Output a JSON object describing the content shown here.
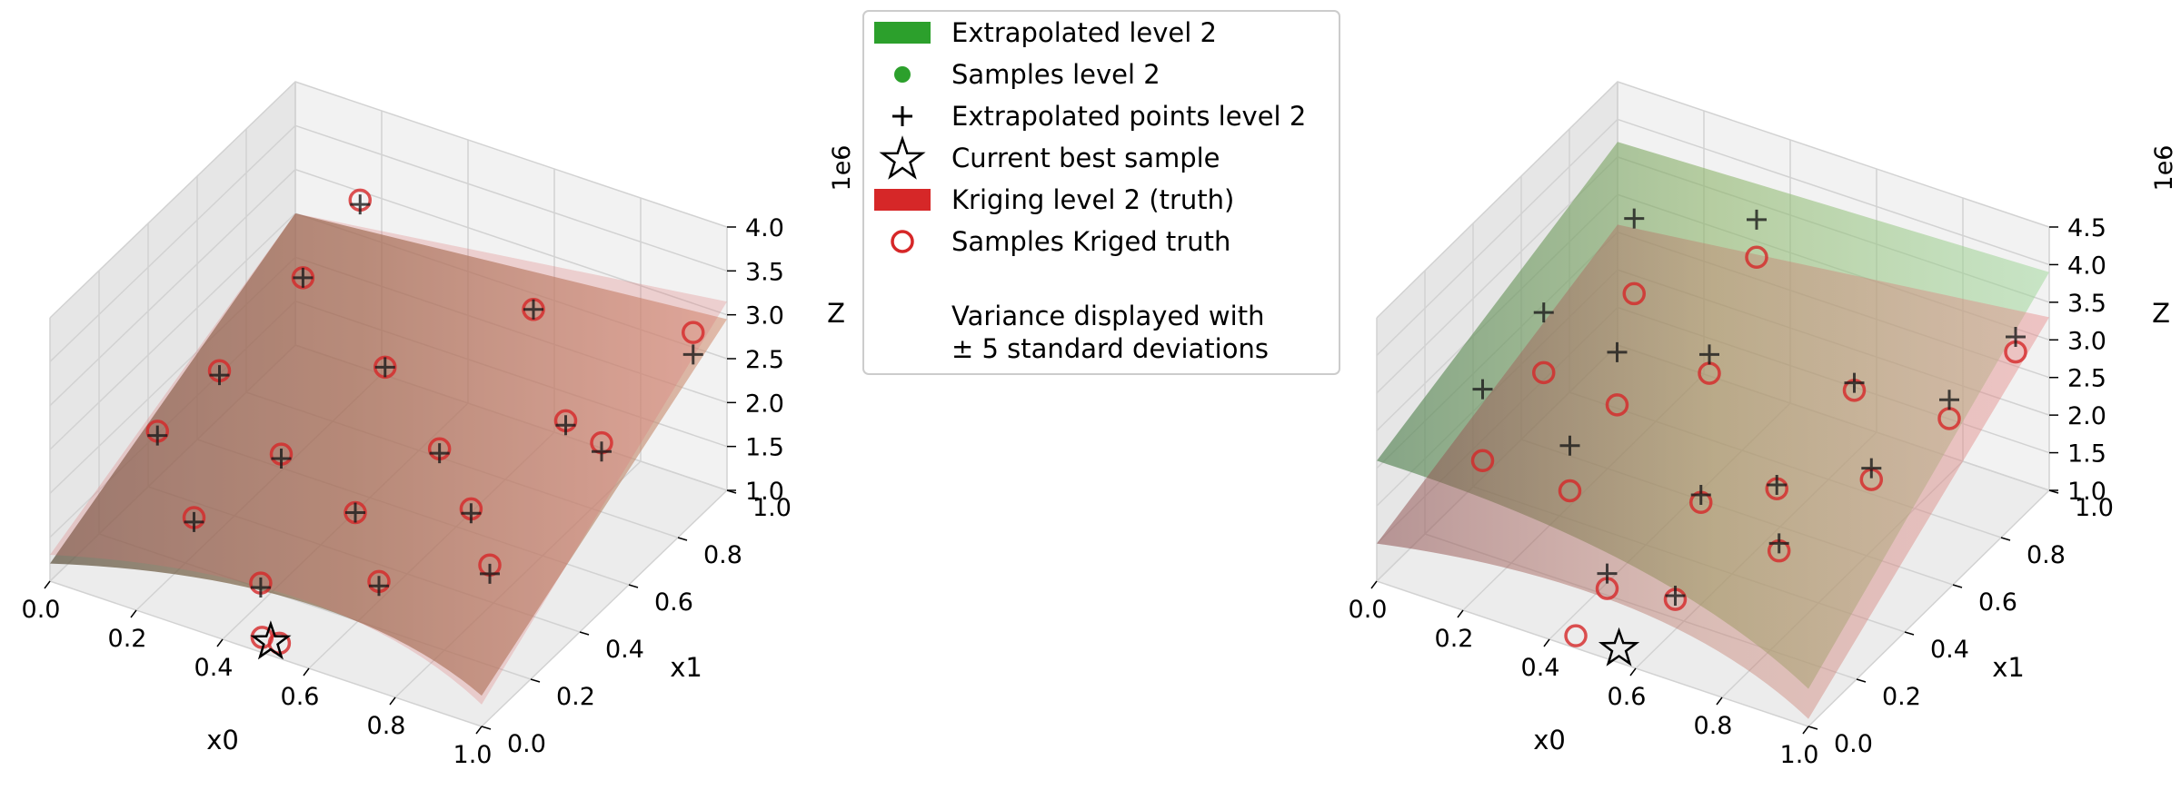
{
  "legend": {
    "items": [
      {
        "label": "Extrapolated level 2",
        "marker": "green-patch",
        "color": "#2ca02c"
      },
      {
        "label": "Samples level 2",
        "marker": "green-dot",
        "color": "#2ca02c"
      },
      {
        "label": "Extrapolated points level 2",
        "marker": "black-plus",
        "color": "#000000"
      },
      {
        "label": "Current best sample",
        "marker": "star-outline",
        "color": "#000000"
      },
      {
        "label": "Kriging level 2 (truth)",
        "marker": "red-patch",
        "color": "#d62728"
      },
      {
        "label": "Samples Kriged truth",
        "marker": "red-ring",
        "color": "#d62728"
      }
    ],
    "note_line1": "Variance displayed with",
    "note_line2": "± 5 standard deviations"
  },
  "chart_data": [
    {
      "type": "surface3d",
      "panel": "left",
      "xlabel": "x0",
      "ylabel": "x1",
      "zlabel": "Z",
      "z_scale_label": "1e6",
      "xlim": [
        0,
        1
      ],
      "ylim": [
        0,
        1
      ],
      "zlim": [
        1.0,
        4.0
      ],
      "x_ticks": [
        "0.0",
        "0.2",
        "0.4",
        "0.6",
        "0.8",
        "1.0"
      ],
      "y_ticks": [
        "0.0",
        "0.2",
        "0.4",
        "0.6",
        "0.8",
        "1.0"
      ],
      "z_ticks": [
        "1.0",
        "1.5",
        "2.0",
        "2.5",
        "3.0",
        "3.5",
        "4.0"
      ],
      "grid": true,
      "series": [
        {
          "name": "Extrapolated level 2",
          "kind": "surface",
          "color": "#2ca02c",
          "z_corners": {
            "x0_0_x1_0": 1.2,
            "x0_1_x1_0": 1.35,
            "x0_0_x1_1": 2.5,
            "x0_1_x1_1": 2.95
          }
        },
        {
          "name": "Kriging level 2 (truth)",
          "kind": "surface",
          "color": "#d62728",
          "z_corners": {
            "x0_0_x1_0": 1.3,
            "x0_1_x1_0": 1.25,
            "x0_0_x1_1": 2.5,
            "x0_1_x1_1": 3.15
          }
        },
        {
          "name": "Samples Kriged truth",
          "kind": "points",
          "color": "#d62728",
          "points": [
            [
              0.05,
              0.35,
              1.85
            ],
            [
              0.08,
              0.55,
              2.05
            ],
            [
              0.12,
              0.82,
              2.45
            ],
            [
              0.15,
              1.0,
              2.9
            ],
            [
              0.22,
              0.2,
              1.55
            ],
            [
              0.28,
              0.45,
              1.7
            ],
            [
              0.35,
              0.75,
              2.0
            ],
            [
              0.42,
              0.12,
              1.35
            ],
            [
              0.48,
              0.4,
              1.5
            ],
            [
              0.55,
              0.62,
              1.75
            ],
            [
              0.58,
              0.95,
              2.5
            ],
            [
              0.62,
              0.25,
              1.35
            ],
            [
              0.68,
              0.52,
              1.55
            ],
            [
              0.74,
              0.8,
              1.9
            ],
            [
              0.82,
              0.35,
              1.6
            ],
            [
              0.88,
              0.7,
              2.15
            ],
            [
              0.95,
              0.95,
              2.85
            ],
            [
              0.48,
              0.02,
              1.1
            ],
            [
              0.52,
              0.02,
              1.1
            ]
          ]
        },
        {
          "name": "Extrapolated points level 2",
          "kind": "points",
          "color": "#000000",
          "points": [
            [
              0.05,
              0.35,
              1.8
            ],
            [
              0.08,
              0.55,
              2.0
            ],
            [
              0.12,
              0.82,
              2.45
            ],
            [
              0.15,
              1.0,
              2.85
            ],
            [
              0.22,
              0.2,
              1.5
            ],
            [
              0.28,
              0.45,
              1.65
            ],
            [
              0.35,
              0.75,
              2.0
            ],
            [
              0.42,
              0.12,
              1.3
            ],
            [
              0.48,
              0.4,
              1.5
            ],
            [
              0.55,
              0.62,
              1.7
            ],
            [
              0.58,
              0.95,
              2.5
            ],
            [
              0.62,
              0.25,
              1.3
            ],
            [
              0.68,
              0.52,
              1.5
            ],
            [
              0.74,
              0.8,
              1.85
            ],
            [
              0.82,
              0.35,
              1.5
            ],
            [
              0.88,
              0.7,
              2.05
            ],
            [
              0.95,
              0.95,
              2.6
            ]
          ]
        },
        {
          "name": "Current best sample",
          "kind": "points",
          "color": "#000000",
          "points": [
            [
              0.5,
              0.02,
              1.08
            ]
          ]
        }
      ]
    },
    {
      "type": "surface3d",
      "panel": "right",
      "xlabel": "x0",
      "ylabel": "x1",
      "zlabel": "Z",
      "z_scale_label": "1e6",
      "xlim": [
        0,
        1
      ],
      "ylim": [
        0,
        1
      ],
      "zlim": [
        1.0,
        4.5
      ],
      "x_ticks": [
        "0.0",
        "0.2",
        "0.4",
        "0.6",
        "0.8",
        "1.0"
      ],
      "y_ticks": [
        "0.0",
        "0.2",
        "0.4",
        "0.6",
        "0.8",
        "1.0"
      ],
      "z_ticks": [
        "1.0",
        "1.5",
        "2.0",
        "2.5",
        "3.0",
        "3.5",
        "4.0",
        "4.5"
      ],
      "grid": true,
      "series": [
        {
          "name": "Extrapolated level 2",
          "kind": "surface",
          "color": "#2ca02c",
          "z_corners": {
            "x0_0_x1_0": 2.6,
            "x0_1_x1_0": 1.5,
            "x0_0_x1_1": 3.7,
            "x0_1_x1_1": 3.9
          }
        },
        {
          "name": "Kriging level 2 (truth)",
          "kind": "surface",
          "color": "#d62728",
          "z_corners": {
            "x0_0_x1_0": 1.5,
            "x0_1_x1_0": 1.1,
            "x0_0_x1_1": 2.6,
            "x0_1_x1_1": 3.3
          }
        },
        {
          "name": "Samples Kriged truth",
          "kind": "points",
          "color": "#d62728",
          "points": [
            [
              0.05,
              0.35,
              1.6
            ],
            [
              0.08,
              0.55,
              2.2
            ],
            [
              0.15,
              0.8,
              2.6
            ],
            [
              0.25,
              0.55,
              2.1
            ],
            [
              0.28,
              0.3,
              1.8
            ],
            [
              0.35,
              0.95,
              3.0
            ],
            [
              0.38,
              0.7,
              2.3
            ],
            [
              0.45,
              0.15,
              1.3
            ],
            [
              0.5,
              0.45,
              1.6
            ],
            [
              0.58,
              0.2,
              1.25
            ],
            [
              0.62,
              0.55,
              1.7
            ],
            [
              0.66,
              0.8,
              2.3
            ],
            [
              0.72,
              0.38,
              1.6
            ],
            [
              0.8,
              0.62,
              1.95
            ],
            [
              0.88,
              0.8,
              2.35
            ],
            [
              0.95,
              0.95,
              2.9
            ],
            [
              0.45,
              0.02,
              1.08
            ]
          ]
        },
        {
          "name": "Extrapolated points level 2",
          "kind": "points",
          "color": "#000000",
          "points": [
            [
              0.05,
              0.35,
              2.55
            ],
            [
              0.08,
              0.55,
              3.0
            ],
            [
              0.15,
              0.8,
              3.6
            ],
            [
              0.25,
              0.55,
              2.8
            ],
            [
              0.28,
              0.3,
              2.4
            ],
            [
              0.35,
              0.95,
              3.5
            ],
            [
              0.38,
              0.7,
              2.55
            ],
            [
              0.45,
              0.15,
              1.5
            ],
            [
              0.5,
              0.45,
              1.7
            ],
            [
              0.58,
              0.2,
              1.3
            ],
            [
              0.62,
              0.55,
              1.75
            ],
            [
              0.66,
              0.8,
              2.4
            ],
            [
              0.72,
              0.38,
              1.7
            ],
            [
              0.8,
              0.62,
              2.1
            ],
            [
              0.88,
              0.8,
              2.6
            ],
            [
              0.95,
              0.95,
              3.1
            ]
          ]
        },
        {
          "name": "Current best sample",
          "kind": "points",
          "color": "#000000",
          "points": [
            [
              0.55,
              0.02,
              1.1
            ]
          ]
        }
      ]
    }
  ]
}
